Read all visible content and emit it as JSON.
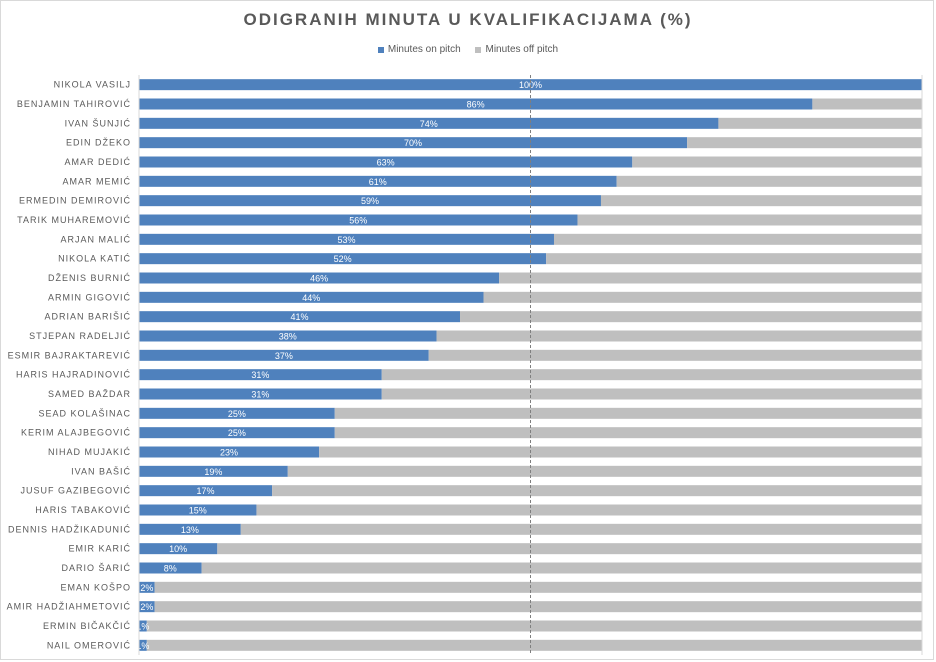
{
  "chart_data": {
    "type": "bar",
    "orientation": "horizontal",
    "stacked": true,
    "title": "ODIGRANIH MINUTA U KVALIFIKACIJAMA (%)",
    "legend_position": "top",
    "xlim": [
      0,
      100
    ],
    "categories": [
      "NIKOLA VASILJ",
      "BENJAMIN TAHIROVIĆ",
      "IVAN ŠUNJIĆ",
      "EDIN DŽEKO",
      "AMAR DEDIĆ",
      "AMAR MEMIĆ",
      "ERMEDIN DEMIROVIĆ",
      "TARIK MUHAREMOVIĆ",
      "ARJAN MALIĆ",
      "NIKOLA KATIĆ",
      "DŽENIS BURNIĆ",
      "ARMIN GIGOVIĆ",
      "ADRIAN BARIŠIĆ",
      "STJEPAN RADELJIĆ",
      "ESMIR BAJRAKTAREVIĆ",
      "HARIS HAJRADINOVIĆ",
      "SAMED BAŽDAR",
      "SEAD KOLAŠINAC",
      "KERIM ALAJBEGOVIĆ",
      "NIHAD MUJAKIĆ",
      "IVAN BAŠIĆ",
      "JUSUF GAZIBEGOVIĆ",
      "HARIS TABAKOVIĆ",
      "DENNIS HADŽIKADUNIĆ",
      "EMIR KARIĆ",
      "DARIO ŠARIĆ",
      "EMAN KOŠPO",
      "AMIR HADŽIAHMETOVIĆ",
      "ERMIN BIČAKČIĆ",
      "NAIL OMEROVIĆ"
    ],
    "series": [
      {
        "name": "Minutes on pitch",
        "color": "#4f81bd",
        "values": [
          100,
          86,
          74,
          70,
          63,
          61,
          59,
          56,
          53,
          52,
          46,
          44,
          41,
          38,
          37,
          31,
          31,
          25,
          25,
          23,
          19,
          17,
          15,
          13,
          10,
          8,
          2,
          2,
          1,
          1
        ],
        "labels": [
          "100%",
          "86%",
          "74%",
          "70%",
          "63%",
          "61%",
          "59%",
          "56%",
          "53%",
          "52%",
          "46%",
          "44%",
          "41%",
          "38%",
          "37%",
          "31%",
          "31%",
          "25%",
          "25%",
          "23%",
          "19%",
          "17%",
          "15%",
          "13%",
          "10%",
          "8%",
          "2%",
          "2%",
          "1%",
          "1%"
        ]
      },
      {
        "name": "Minutes off pitch",
        "color": "#bfbfbf",
        "values": [
          0,
          14,
          26,
          30,
          37,
          39,
          41,
          44,
          47,
          48,
          54,
          56,
          59,
          62,
          63,
          69,
          69,
          75,
          75,
          77,
          81,
          83,
          85,
          87,
          90,
          92,
          98,
          98,
          99,
          99
        ]
      }
    ],
    "gridlines": [
      0,
      50,
      100
    ]
  }
}
